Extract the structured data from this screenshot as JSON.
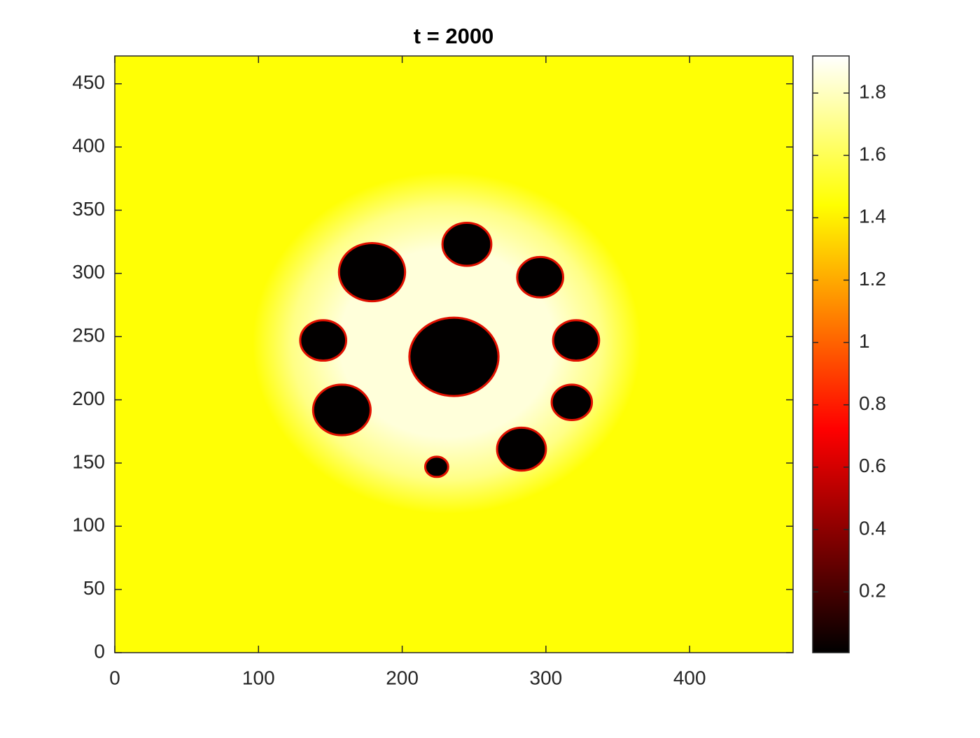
{
  "chart_data": {
    "type": "heatmap",
    "title": "t = 2000",
    "xlim": [
      0,
      472
    ],
    "ylim": [
      0,
      472
    ],
    "xticks": [
      0,
      100,
      200,
      300,
      400
    ],
    "yticks": [
      0,
      50,
      100,
      150,
      200,
      250,
      300,
      350,
      400,
      450
    ],
    "colormap": "hot",
    "clim": [
      0.005,
      1.919
    ],
    "colorbar_ticks": [
      0.2,
      0.4,
      0.6,
      0.8,
      1,
      1.2,
      1.4,
      1.6,
      1.8
    ],
    "background_value": 1.45,
    "halo": {
      "x": 231,
      "y": 245,
      "r": 135,
      "value": 1.85
    },
    "spots": [
      {
        "x": 236,
        "y": 234,
        "r": 31,
        "value": 0.01
      },
      {
        "x": 179,
        "y": 301,
        "r": 23,
        "value": 0.01
      },
      {
        "x": 245,
        "y": 323,
        "r": 17,
        "value": 0.01
      },
      {
        "x": 296,
        "y": 297,
        "r": 16,
        "value": 0.01
      },
      {
        "x": 145,
        "y": 247,
        "r": 16,
        "value": 0.01
      },
      {
        "x": 321,
        "y": 247,
        "r": 16,
        "value": 0.01
      },
      {
        "x": 158,
        "y": 192,
        "r": 20,
        "value": 0.01
      },
      {
        "x": 318,
        "y": 198,
        "r": 14,
        "value": 0.01
      },
      {
        "x": 283,
        "y": 161,
        "r": 17,
        "value": 0.01
      },
      {
        "x": 224,
        "y": 147,
        "r": 8,
        "value": 0.01
      }
    ]
  }
}
